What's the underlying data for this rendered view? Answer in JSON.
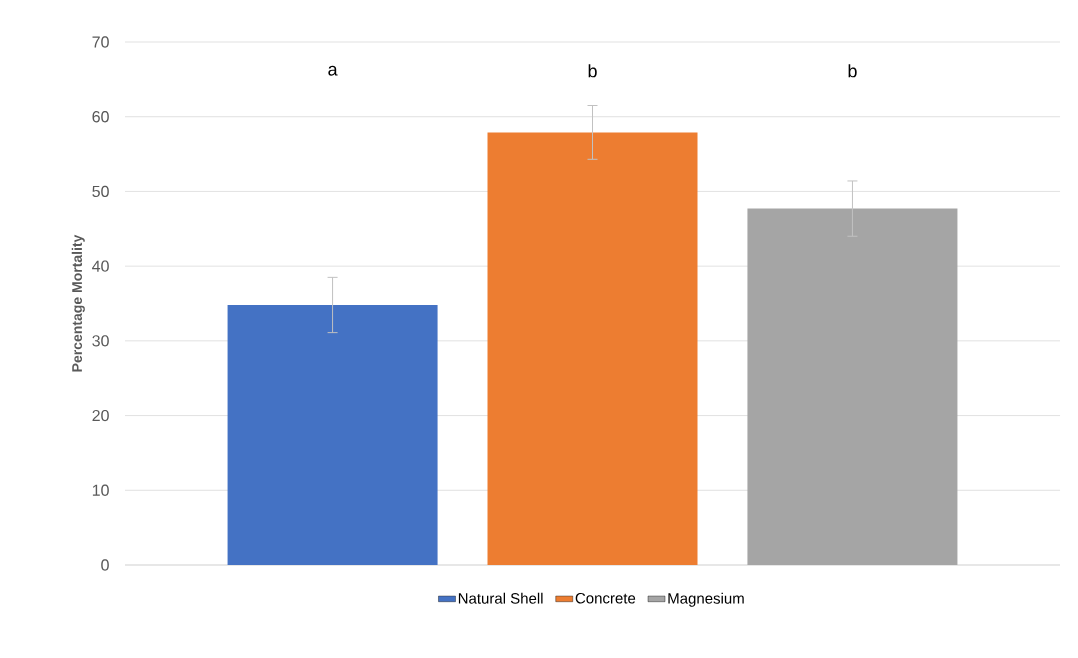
{
  "chart_data": {
    "type": "bar",
    "ylabel": "Percentage Mortality",
    "categories": [
      null
    ],
    "series": [
      {
        "name": "Natural Shell",
        "color": "#4472c4",
        "values": [
          34.8
        ],
        "errors": [
          3.7
        ]
      },
      {
        "name": "Concrete",
        "color": "#ed7d31",
        "values": [
          57.9
        ],
        "errors": [
          3.6
        ]
      },
      {
        "name": "Magnesium",
        "color": "#a5a5a5",
        "values": [
          47.7
        ],
        "errors": [
          3.7
        ]
      }
    ],
    "ylim": [
      0,
      70
    ],
    "yticks": [
      0,
      10,
      20,
      30,
      40,
      50,
      60,
      70
    ],
    "grid": "y",
    "legend": "bottom",
    "annotations": [
      "a",
      "b",
      "b"
    ]
  }
}
